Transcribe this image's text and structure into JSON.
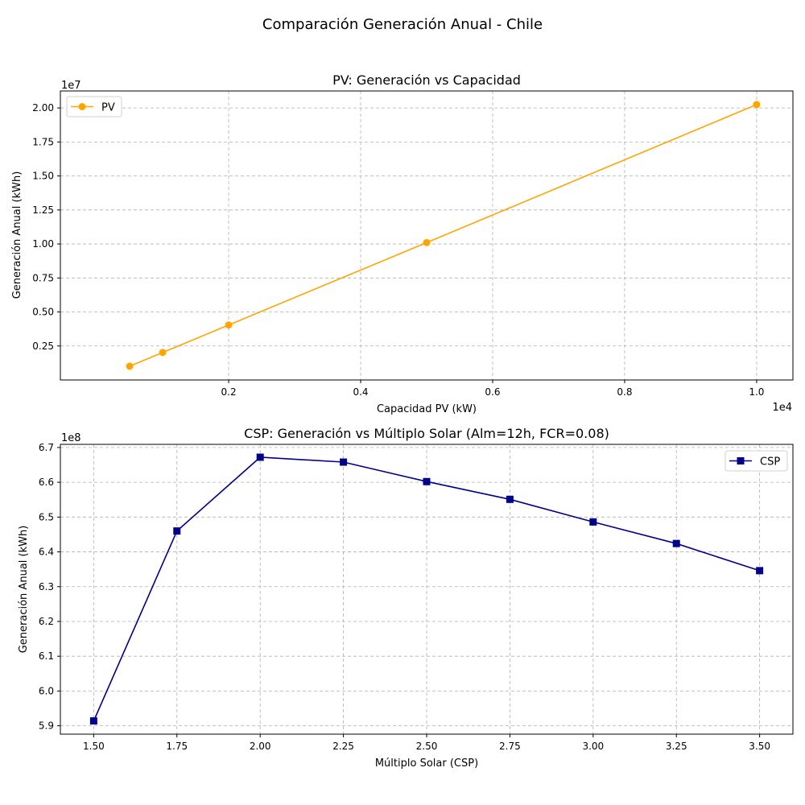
{
  "figure": {
    "suptitle": "Comparación Generación Anual - Chile"
  },
  "chart_data": [
    {
      "type": "line",
      "title": "PV: Generación vs Capacidad",
      "xlabel": "Capacidad PV (kW)",
      "ylabel": "Generación Anual (kWh)",
      "x_offset_label": "1e4",
      "y_offset_label": "1e7",
      "x_scale": 10000,
      "y_scale": 10000000,
      "xlim": [
        -550,
        10550
      ],
      "ylim": [
        0,
        21250000
      ],
      "xticks": [
        2000,
        4000,
        6000,
        8000,
        10000
      ],
      "xtick_labels": [
        "0.2",
        "0.4",
        "0.6",
        "0.8",
        "1.0"
      ],
      "yticks": [
        2500000,
        5000000,
        7500000,
        10000000,
        12500000,
        15000000,
        17500000,
        20000000
      ],
      "ytick_labels": [
        "0.25",
        "0.50",
        "0.75",
        "1.00",
        "1.25",
        "1.50",
        "1.75",
        "2.00"
      ],
      "grid": true,
      "legend_position": "upper-left",
      "series": [
        {
          "name": "PV",
          "color": "#ffa500",
          "marker": "circle",
          "x": [
            500,
            1000,
            2000,
            5000,
            10000
          ],
          "y": [
            1010000,
            2020000,
            4040000,
            10100000,
            20250000
          ]
        }
      ]
    },
    {
      "type": "line",
      "title": "CSP: Generación vs Múltiplo Solar (Alm=12h, FCR=0.08)",
      "xlabel": "Múltiplo Solar (CSP)",
      "ylabel": "Generación Anual (kWh)",
      "y_offset_label": "1e8",
      "y_scale": 100000000,
      "xlim": [
        1.4,
        3.6
      ],
      "ylim": [
        587600000,
        670900000
      ],
      "xticks": [
        1.5,
        1.75,
        2.0,
        2.25,
        2.5,
        2.75,
        3.0,
        3.25,
        3.5
      ],
      "xtick_labels": [
        "1.50",
        "1.75",
        "2.00",
        "2.25",
        "2.50",
        "2.75",
        "3.00",
        "3.25",
        "3.50"
      ],
      "yticks": [
        590000000,
        600000000,
        610000000,
        620000000,
        630000000,
        640000000,
        650000000,
        660000000,
        670000000
      ],
      "ytick_labels": [
        "5.9",
        "6.0",
        "6.1",
        "6.2",
        "6.3",
        "6.4",
        "6.5",
        "6.6",
        "6.7"
      ],
      "grid": true,
      "legend_position": "upper-right",
      "series": [
        {
          "name": "CSP",
          "color": "#00008b",
          "marker": "square",
          "x": [
            1.5,
            1.75,
            2.0,
            2.25,
            2.5,
            2.75,
            3.0,
            3.25,
            3.5
          ],
          "y": [
            591400000,
            646000000,
            667200000,
            665800000,
            660200000,
            655100000,
            648600000,
            642400000,
            634600000
          ]
        }
      ]
    }
  ]
}
